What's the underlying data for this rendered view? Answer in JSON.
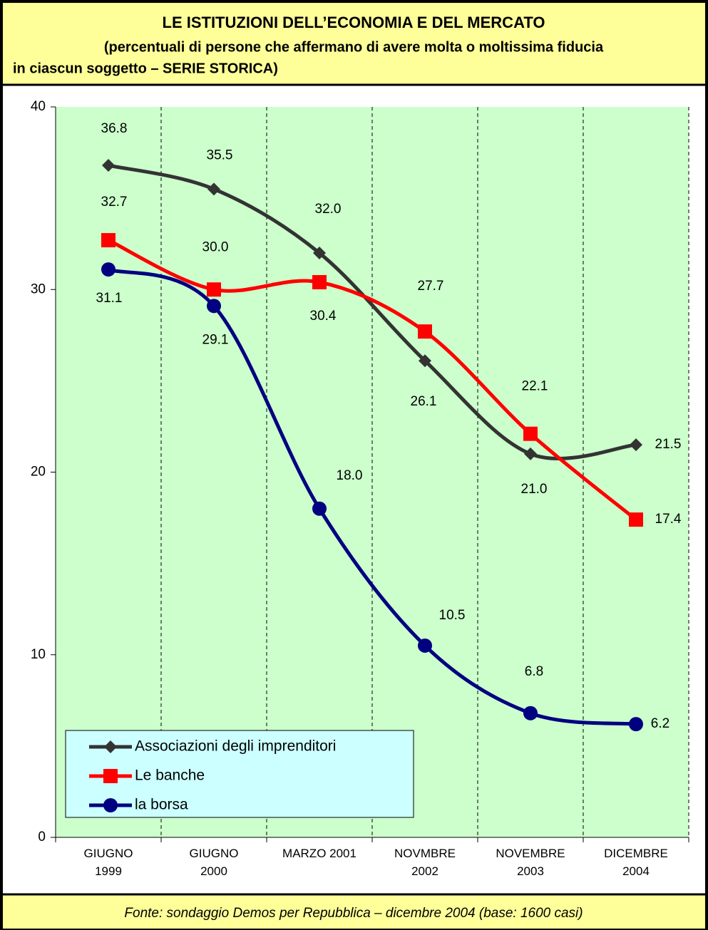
{
  "chart_data": {
    "type": "line",
    "title": "LE ISTITUZIONI DELL’ECONOMIA E DEL MERCATO",
    "subtitle": [
      "(percentuali di persone che affermano di avere molta o moltissima fiducia",
      "in ciascun soggetto – SERIE STORICA)"
    ],
    "source": "Fonte: sondaggio Demos per Repubblica – dicembre 2004 (base: 1600 casi)",
    "categories": [
      [
        "GIUGNO",
        "1999"
      ],
      [
        "GIUGNO",
        "2000"
      ],
      [
        "MARZO 2001"
      ],
      [
        "NOVMBRE",
        "2002"
      ],
      [
        "NOVEMBRE",
        "2003"
      ],
      [
        "DICEMBRE",
        "2004"
      ]
    ],
    "series": [
      {
        "name": "Associazioni degli imprenditori",
        "color": "#333333",
        "marker": "diamond",
        "values": [
          36.8,
          35.5,
          32.0,
          26.1,
          21.0,
          21.5
        ],
        "value_labels": [
          "36.8",
          "35.5",
          "32.0",
          "26.1",
          "21.0",
          "21.5"
        ]
      },
      {
        "name": "Le banche",
        "color": "#ff0000",
        "marker": "square",
        "values": [
          32.7,
          30.0,
          30.4,
          27.7,
          22.1,
          17.4
        ],
        "value_labels": [
          "32.7",
          "30.0",
          "30.4",
          "27.7",
          "22.1",
          "17.4"
        ]
      },
      {
        "name": "la borsa",
        "color": "#000080",
        "marker": "circle",
        "values": [
          31.1,
          29.1,
          18.0,
          10.5,
          6.8,
          6.2
        ],
        "value_labels": [
          "31.1",
          "29.1",
          "18.0",
          "10.5",
          "6.8",
          "6.2"
        ]
      }
    ],
    "ylim": [
      0,
      40
    ],
    "yticks": [
      0,
      10,
      20,
      30,
      40
    ],
    "smooth": true
  }
}
